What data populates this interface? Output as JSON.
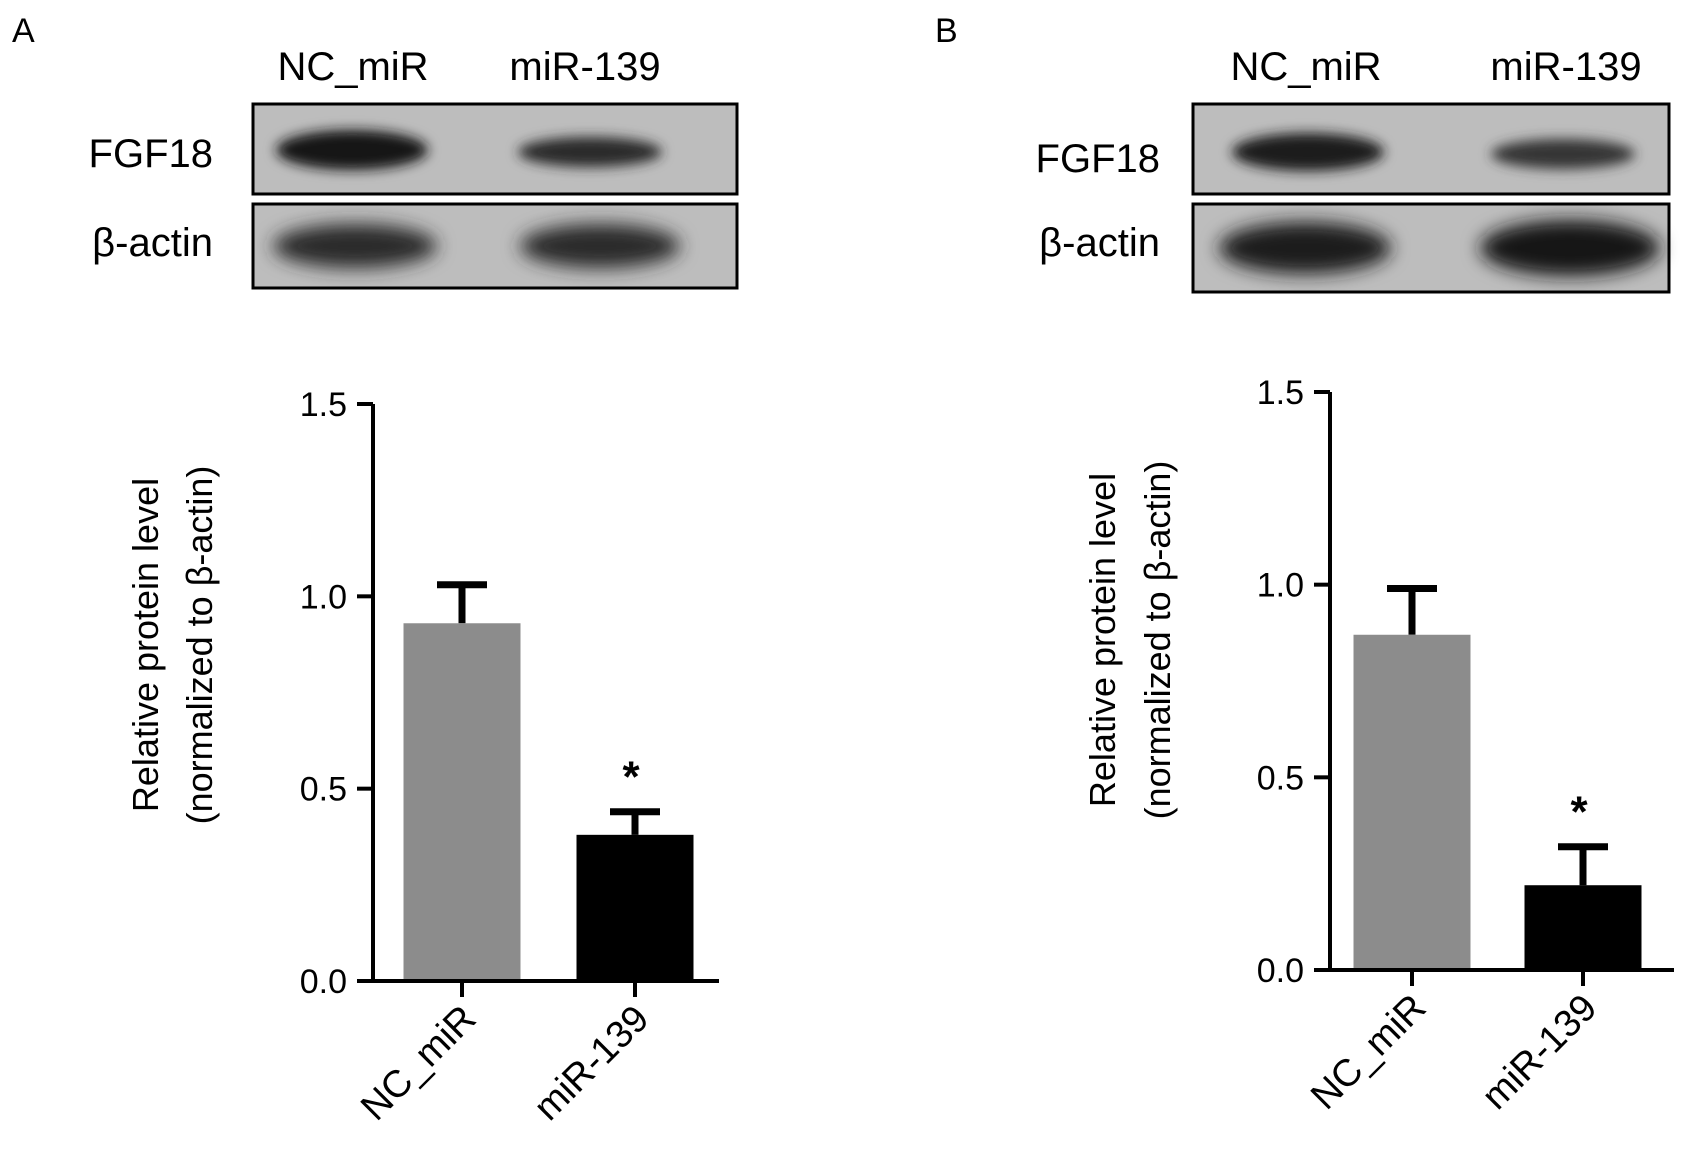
{
  "panels": [
    {
      "letter": "A",
      "blot": {
        "lanes": [
          "NC_miR",
          "miR-139"
        ],
        "rows": [
          "FGF18",
          "β-actin"
        ]
      }
    },
    {
      "letter": "B",
      "blot": {
        "lanes": [
          "NC_miR",
          "miR-139"
        ],
        "rows": [
          "FGF18",
          "β-actin"
        ]
      }
    }
  ],
  "chart_data": [
    {
      "type": "bar",
      "panel": "A",
      "categories": [
        "NC_miR",
        "miR-139"
      ],
      "values": [
        0.93,
        0.38
      ],
      "error_upper": [
        0.1,
        0.06
      ],
      "bar_colors": [
        "#8c8c8c",
        "#000000"
      ],
      "significance": [
        "",
        "*"
      ],
      "title": "",
      "xlabel": "",
      "ylabel_line1": "Relative protein level",
      "ylabel_line2": "(normalized to β-actin)",
      "ylim": [
        0,
        1.5
      ],
      "yticks": [
        "0.0",
        "0.5",
        "1.0",
        "1.5"
      ],
      "grid": false,
      "legend": "none"
    },
    {
      "type": "bar",
      "panel": "B",
      "categories": [
        "NC_miR",
        "miR-139"
      ],
      "values": [
        0.87,
        0.22
      ],
      "error_upper": [
        0.12,
        0.1
      ],
      "bar_colors": [
        "#8c8c8c",
        "#000000"
      ],
      "significance": [
        "",
        "*"
      ],
      "title": "",
      "xlabel": "",
      "ylabel_line1": "Relative protein level",
      "ylabel_line2": "(normalized to β-actin)",
      "ylim": [
        0,
        1.5
      ],
      "yticks": [
        "0.0",
        "0.5",
        "1.0",
        "1.5"
      ],
      "grid": false,
      "legend": "none"
    }
  ]
}
